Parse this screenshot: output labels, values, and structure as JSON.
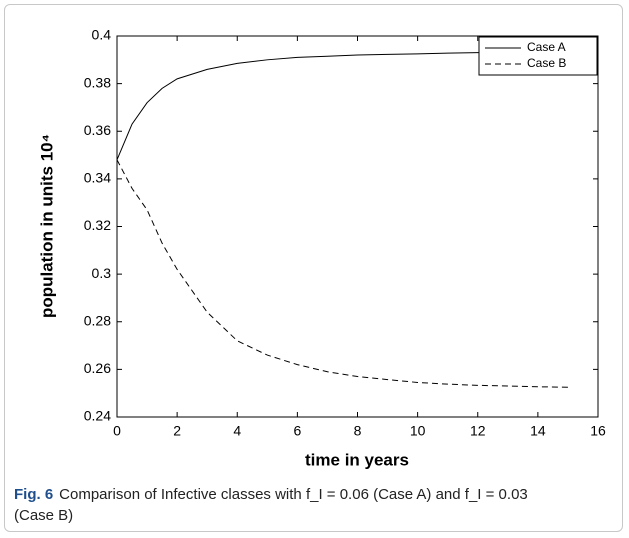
{
  "chart_data": {
    "type": "line",
    "xlabel": "time in years",
    "ylabel": "population in units 10⁴",
    "x": [
      0,
      0.5,
      1,
      1.5,
      2,
      3,
      4,
      5,
      6,
      7,
      8,
      9,
      10,
      11,
      12,
      13,
      14,
      15
    ],
    "series": [
      {
        "name": "Case A",
        "color": "#000000",
        "dash": "solid",
        "values": [
          0.348,
          0.363,
          0.372,
          0.378,
          0.382,
          0.386,
          0.3885,
          0.39,
          0.391,
          0.3915,
          0.392,
          0.3923,
          0.3925,
          0.3928,
          0.393,
          0.393,
          0.393,
          0.393
        ]
      },
      {
        "name": "Case B",
        "color": "#000000",
        "dash": "dashed",
        "values": [
          0.348,
          0.336,
          0.327,
          0.313,
          0.302,
          0.284,
          0.272,
          0.266,
          0.262,
          0.259,
          0.257,
          0.2557,
          0.2545,
          0.2538,
          0.2533,
          0.253,
          0.2527,
          0.2525
        ]
      }
    ],
    "xlim": [
      0,
      16
    ],
    "xticks": [
      0,
      2,
      4,
      6,
      8,
      10,
      12,
      14,
      16
    ],
    "ylim": [
      0.24,
      0.4
    ],
    "yticks": [
      0.24,
      0.26,
      0.28,
      0.3,
      0.32,
      0.34,
      0.36,
      0.38,
      0.4
    ],
    "legend": "upper right",
    "caption_label": "Fig. 6",
    "caption": "Comparison of Infective classes with f_I = 0.06 (Case A) and f_I = 0.03 (Case B)"
  }
}
